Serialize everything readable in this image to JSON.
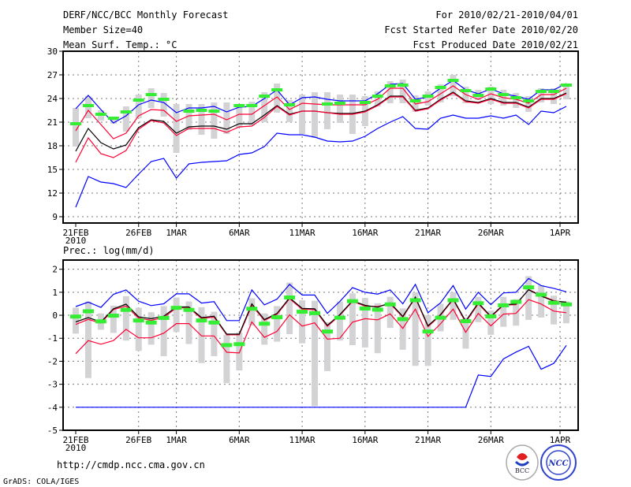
{
  "header": {
    "title": "DERF/NCC/BCC Monthly Forecast",
    "member_size": "Member Size=40",
    "variable": "Mean Surf. Temp.: °C",
    "period": "For 2010/02/21-2010/04/01",
    "started": "Fcst Started Refer Date 2010/02/20",
    "produced": "Fcst Produced Date 2010/02/21"
  },
  "footer": {
    "url": "http://cmdp.ncc.cma.gov.cn",
    "credit": "GrADS: COLA/IGES",
    "logo_bcc": "BCC",
    "logo_ncc": "NCC"
  },
  "colors": {
    "max_min": "#0000ff",
    "spread": "#ff0033",
    "mean": "#000000",
    "obs": "#33ee33",
    "bar": "#d3d3d6"
  },
  "chart_data": [
    {
      "type": "line",
      "title": "Mean Surf. Temp.: °C",
      "ylim": [
        8.2,
        30
      ],
      "yticks": [
        9,
        12,
        15,
        18,
        21,
        24,
        27,
        30
      ],
      "xticks": [
        {
          "day": 0,
          "label": "21FEB"
        },
        {
          "day": 5,
          "label": "26FEB"
        },
        {
          "day": 8,
          "label": "1MAR"
        },
        {
          "day": 13,
          "label": "6MAR"
        },
        {
          "day": 18,
          "label": "11MAR"
        },
        {
          "day": 23,
          "label": "16MAR"
        },
        {
          "day": 28,
          "label": "21MAR"
        },
        {
          "day": 33,
          "label": "26MAR"
        },
        {
          "day": 38.5,
          "label": "1APR"
        }
      ],
      "year_label": "2010",
      "grid": true,
      "series": [
        {
          "name": "max",
          "color": "max_min",
          "values": [
            22.7,
            24.4,
            22.6,
            20.9,
            21.8,
            23.2,
            23.8,
            23.5,
            22.2,
            22.8,
            22.8,
            23.0,
            22.3,
            22.9,
            23.0,
            24.0,
            25.1,
            23.2,
            24.1,
            24.2,
            23.9,
            23.7,
            23.7,
            23.7,
            24.6,
            25.8,
            25.9,
            23.9,
            24.2,
            25.3,
            26.3,
            25.1,
            24.6,
            25.2,
            24.6,
            24.3,
            23.9,
            25.1,
            25.1,
            25.9
          ]
        },
        {
          "name": "upper",
          "color": "spread",
          "values": [
            19.9,
            22.5,
            20.7,
            18.9,
            19.6,
            21.8,
            22.6,
            22.5,
            21.1,
            21.8,
            21.9,
            22.0,
            21.3,
            22.0,
            22.0,
            23.1,
            24.2,
            22.6,
            23.4,
            23.3,
            23.2,
            23.2,
            23.2,
            23.2,
            23.9,
            25.3,
            25.3,
            23.3,
            23.6,
            24.6,
            25.6,
            24.5,
            23.9,
            24.6,
            24.1,
            23.9,
            23.4,
            24.5,
            24.5,
            25.3
          ]
        },
        {
          "name": "mean",
          "color": "mean",
          "values": [
            17.3,
            20.2,
            18.4,
            17.6,
            18.1,
            20.3,
            21.3,
            21.1,
            19.6,
            20.4,
            20.5,
            20.5,
            20.1,
            20.8,
            20.8,
            21.9,
            23.1,
            22.0,
            22.4,
            22.4,
            22.2,
            22.1,
            22.1,
            22.4,
            23.2,
            24.3,
            24.3,
            22.5,
            22.8,
            23.9,
            24.8,
            23.7,
            23.5,
            24.0,
            23.5,
            23.5,
            22.9,
            24.0,
            24.0,
            24.7
          ]
        },
        {
          "name": "lower",
          "color": "spread",
          "values": [
            15.9,
            19.0,
            17.0,
            16.5,
            17.4,
            20.1,
            21.2,
            20.9,
            19.3,
            20.2,
            20.2,
            20.2,
            19.7,
            20.4,
            20.5,
            21.6,
            23.0,
            21.9,
            22.4,
            22.4,
            22.2,
            22.0,
            22.0,
            22.3,
            23.1,
            24.2,
            24.2,
            22.4,
            22.7,
            23.8,
            24.7,
            23.6,
            23.4,
            23.9,
            23.4,
            23.4,
            22.8,
            23.9,
            23.9,
            24.6
          ]
        },
        {
          "name": "min",
          "color": "max_min",
          "values": [
            10.2,
            14.1,
            13.4,
            13.2,
            12.7,
            14.4,
            16.0,
            16.4,
            13.9,
            15.7,
            15.9,
            16.0,
            16.1,
            16.9,
            17.1,
            17.9,
            19.6,
            19.4,
            19.4,
            19.1,
            18.6,
            18.5,
            18.6,
            19.2,
            20.2,
            21.0,
            21.7,
            20.2,
            20.1,
            21.5,
            21.9,
            21.5,
            21.5,
            21.8,
            21.5,
            21.9,
            20.7,
            22.4,
            22.2,
            23.0
          ]
        }
      ],
      "obs": [
        20.8,
        23.1,
        22.0,
        21.5,
        22.3,
        23.8,
        24.5,
        23.9,
        null,
        22.4,
        22.5,
        22.4,
        null,
        23.1,
        23.1,
        24.3,
        25.1,
        23.2,
        null,
        null,
        23.3,
        23.4,
        null,
        23.5,
        24.3,
        25.6,
        25.7,
        23.7,
        24.3,
        25.4,
        26.3,
        25.0,
        24.4,
        25.2,
        24.5,
        24.1,
        23.7,
        24.9,
        24.9,
        25.7
      ],
      "bars": [
        [
          17.9,
          22.8
        ],
        [
          21.5,
          24.3
        ],
        [
          21.2,
          22.5
        ],
        [
          20.8,
          21.7
        ],
        [
          19.8,
          23.0
        ],
        [
          21.5,
          24.5
        ],
        [
          22.8,
          25.3
        ],
        [
          21.7,
          24.7
        ],
        [
          17.1,
          23.3
        ],
        [
          20.0,
          23.3
        ],
        [
          19.4,
          23.3
        ],
        [
          18.9,
          23.5
        ],
        [
          19.5,
          23.5
        ],
        [
          20.3,
          23.1
        ],
        [
          20.6,
          23.6
        ],
        [
          21.0,
          24.8
        ],
        [
          22.2,
          25.9
        ],
        [
          21.0,
          23.8
        ],
        [
          19.5,
          24.5
        ],
        [
          19.0,
          24.8
        ],
        [
          20.1,
          24.8
        ],
        [
          20.9,
          24.5
        ],
        [
          19.5,
          24.5
        ],
        [
          20.5,
          24.3
        ],
        [
          23.0,
          24.9
        ],
        [
          23.4,
          26.2
        ],
        [
          23.4,
          26.4
        ],
        [
          22.3,
          24.4
        ],
        [
          23.1,
          24.9
        ],
        [
          23.5,
          25.8
        ],
        [
          24.3,
          27.0
        ],
        [
          23.4,
          25.5
        ],
        [
          23.8,
          25.1
        ],
        [
          23.3,
          25.5
        ],
        [
          23.1,
          25.1
        ],
        [
          22.8,
          24.7
        ],
        [
          22.3,
          24.3
        ],
        [
          23.5,
          25.3
        ],
        [
          23.3,
          25.3
        ],
        [
          23.9,
          25.9
        ]
      ]
    },
    {
      "type": "line",
      "title": "Prec.: log(mm/d)",
      "ylim": [
        -5,
        2.4
      ],
      "yticks": [
        -5,
        -4,
        -3,
        -2,
        -1,
        0,
        1,
        2
      ],
      "xticks": [
        {
          "day": 0,
          "label": "21FEB"
        },
        {
          "day": 5,
          "label": "26FEB"
        },
        {
          "day": 8,
          "label": "1MAR"
        },
        {
          "day": 13,
          "label": "6MAR"
        },
        {
          "day": 18,
          "label": "11MAR"
        },
        {
          "day": 23,
          "label": "16MAR"
        },
        {
          "day": 28,
          "label": "21MAR"
        },
        {
          "day": 33,
          "label": "26MAR"
        },
        {
          "day": 38.5,
          "label": "1APR"
        }
      ],
      "year_label": "2010",
      "grid": true,
      "series": [
        {
          "name": "max",
          "color": "max_min",
          "values": [
            0.38,
            0.57,
            0.34,
            0.91,
            1.1,
            0.61,
            0.42,
            0.5,
            0.93,
            0.93,
            0.53,
            0.59,
            -0.23,
            -0.23,
            1.1,
            0.45,
            0.7,
            1.34,
            0.88,
            0.88,
            0.08,
            0.6,
            1.2,
            1.0,
            0.92,
            1.1,
            0.5,
            1.34,
            0.11,
            0.54,
            1.29,
            0.27,
            1.0,
            0.46,
            0.97,
            1.0,
            1.6,
            1.29,
            1.17,
            1.02
          ]
        },
        {
          "name": "upper",
          "color": "spread",
          "values": [
            -0.4,
            -0.18,
            -0.34,
            0.25,
            0.4,
            -0.12,
            -0.22,
            -0.1,
            0.32,
            0.32,
            -0.14,
            -0.08,
            -0.85,
            -0.85,
            0.42,
            -0.22,
            0.04,
            0.72,
            0.26,
            0.24,
            -0.48,
            0.0,
            0.6,
            0.4,
            0.38,
            0.5,
            -0.08,
            0.76,
            -0.5,
            0.0,
            0.68,
            -0.3,
            0.5,
            -0.08,
            0.44,
            0.46,
            1.12,
            0.86,
            0.64,
            0.55
          ]
        },
        {
          "name": "mean",
          "color": "mean",
          "values": [
            -0.29,
            -0.1,
            -0.29,
            0.28,
            0.48,
            -0.07,
            -0.15,
            -0.04,
            0.36,
            0.36,
            -0.1,
            -0.04,
            -0.82,
            -0.82,
            0.5,
            -0.19,
            0.08,
            0.76,
            0.3,
            0.28,
            -0.44,
            0.03,
            0.63,
            0.43,
            0.35,
            0.54,
            -0.05,
            0.79,
            -0.46,
            0.03,
            0.71,
            -0.26,
            0.54,
            -0.05,
            0.46,
            0.49,
            1.11,
            0.83,
            0.62,
            0.57
          ]
        },
        {
          "name": "lower",
          "color": "spread",
          "values": [
            -1.67,
            -1.1,
            -1.26,
            -1.1,
            -0.61,
            -0.98,
            -0.98,
            -0.78,
            -0.36,
            -0.36,
            -0.9,
            -0.9,
            -1.61,
            -1.64,
            -0.29,
            -0.96,
            -0.7,
            0.02,
            -0.47,
            -0.33,
            -1.04,
            -1.0,
            -0.3,
            -0.15,
            -0.2,
            0.06,
            -0.57,
            0.27,
            -0.92,
            -0.37,
            0.27,
            -0.74,
            0.08,
            -0.46,
            0.05,
            0.08,
            0.68,
            0.49,
            0.18,
            0.11
          ]
        },
        {
          "name": "min",
          "color": "max_min",
          "values": [
            -4,
            -4,
            -4,
            -4,
            -4,
            -4,
            -4,
            -4,
            -4,
            -4,
            -4,
            -4,
            -4,
            -4,
            -4,
            -4,
            -4,
            -4,
            -4,
            -4,
            -4,
            -4,
            -4,
            -4,
            -4,
            -4,
            -4,
            -4,
            -4,
            -4,
            -4,
            -4,
            -2.6,
            -2.66,
            -1.9,
            -1.6,
            -1.35,
            -2.35,
            -2.09,
            -1.31
          ]
        }
      ],
      "obs": [
        -0.04,
        0.19,
        -0.25,
        0.0,
        0.25,
        -0.21,
        -0.3,
        -0.1,
        0.34,
        0.25,
        -0.21,
        -0.3,
        -1.28,
        -1.24,
        0.3,
        -0.35,
        -0.07,
        0.79,
        0.17,
        0.11,
        -0.69,
        -0.09,
        0.63,
        0.31,
        0.26,
        0.49,
        -0.15,
        0.67,
        -0.69,
        -0.09,
        0.67,
        -0.24,
        0.54,
        -0.03,
        0.45,
        0.6,
        1.23,
        0.91,
        0.56,
        0.49
      ],
      "bars": [
        [
          -0.8,
          0.33
        ],
        [
          -2.73,
          0.6
        ],
        [
          -0.63,
          0.08
        ],
        [
          -0.77,
          0.42
        ],
        [
          -1.1,
          0.83
        ],
        [
          -1.55,
          0.33
        ],
        [
          -1.28,
          0.13
        ],
        [
          -1.78,
          0.4
        ],
        [
          -0.73,
          0.77
        ],
        [
          -1.25,
          0.6
        ],
        [
          -2.08,
          0.35
        ],
        [
          -1.78,
          0.15
        ],
        [
          -2.95,
          -0.85
        ],
        [
          -2.4,
          -0.75
        ],
        [
          -0.45,
          0.74
        ],
        [
          -1.28,
          0.08
        ],
        [
          -1.15,
          0.4
        ],
        [
          -0.82,
          1.42
        ],
        [
          -1.22,
          0.65
        ],
        [
          -3.95,
          0.63
        ],
        [
          -2.43,
          -0.3
        ],
        [
          -1.1,
          0.6
        ],
        [
          -1.3,
          0.95
        ],
        [
          -1.4,
          0.75
        ],
        [
          -1.65,
          0.52
        ],
        [
          -0.55,
          0.8
        ],
        [
          -1.5,
          0.3
        ],
        [
          -2.2,
          1.0
        ],
        [
          -2.2,
          0.0
        ],
        [
          -0.7,
          0.5
        ],
        [
          -0.2,
          1.0
        ],
        [
          -1.45,
          -0.1
        ],
        [
          -0.3,
          0.8
        ],
        [
          -0.85,
          0.2
        ],
        [
          -0.5,
          0.8
        ],
        [
          -0.45,
          0.7
        ],
        [
          -0.2,
          1.7
        ],
        [
          -0.1,
          1.3
        ],
        [
          -0.4,
          0.85
        ],
        [
          -0.35,
          0.6
        ]
      ]
    }
  ]
}
